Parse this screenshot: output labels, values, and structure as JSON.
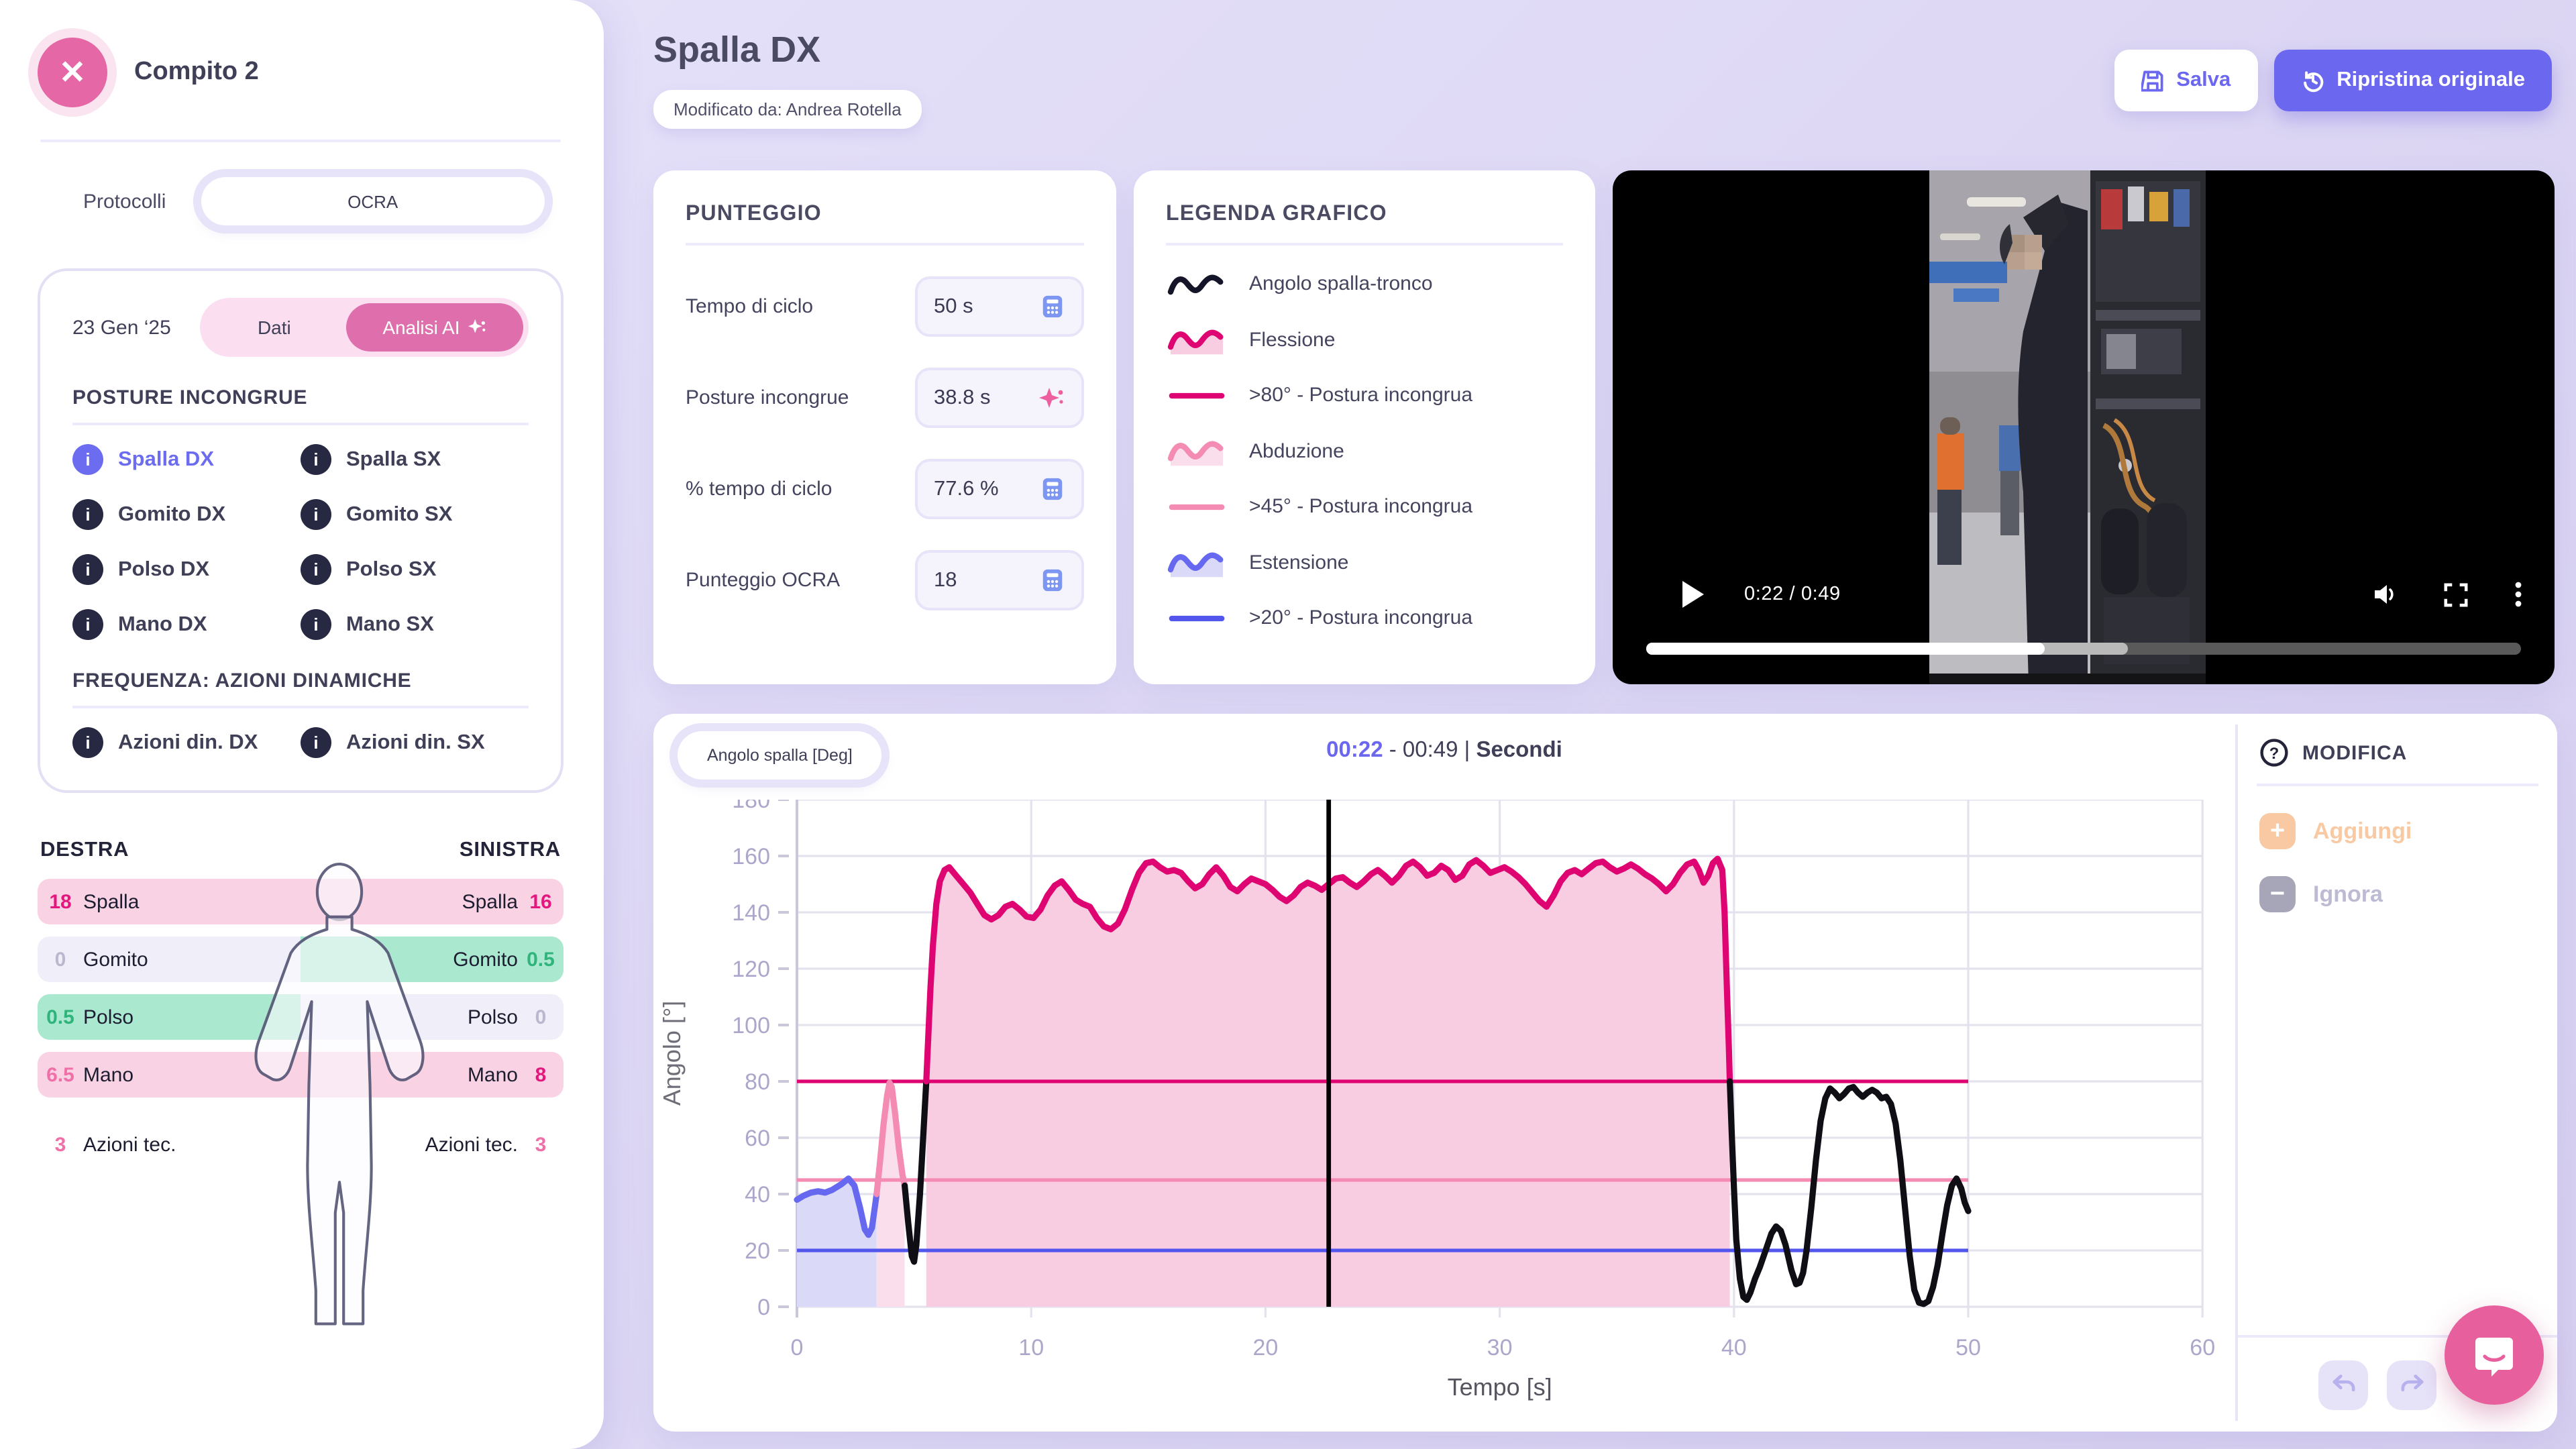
{
  "accents": {
    "purple": "#6c67ef",
    "purple_item": "#6c6cf0",
    "pink": "#e667a5",
    "pink_toggle": "#de6fac",
    "magenta": "#de0572",
    "soft_pink": "#f48bb2",
    "blue_line": "#5356ec",
    "peach": "#f8c9a2",
    "gray_ignore": "#a7a5b8"
  },
  "sidebar": {
    "task_title": "Compito 2",
    "protocols_label": "Protocolli",
    "protocol_value": "OCRA",
    "date": "23 Gen ‘25",
    "toggle": {
      "left": "Dati",
      "right": "Analisi AI"
    },
    "posture_section": "POSTURE INCONGRUE",
    "posture_items": [
      {
        "label": "Spalla DX",
        "active": true
      },
      {
        "label": "Spalla SX",
        "active": false
      },
      {
        "label": "Gomito DX",
        "active": false
      },
      {
        "label": "Gomito SX",
        "active": false
      },
      {
        "label": "Polso DX",
        "active": false
      },
      {
        "label": "Polso SX",
        "active": false
      },
      {
        "label": "Mano DX",
        "active": false
      },
      {
        "label": "Mano SX",
        "active": false
      }
    ],
    "frequency_section": "FREQUENZA: AZIONI DINAMICHE",
    "frequency_items": [
      {
        "label": "Azioni din. DX"
      },
      {
        "label": "Azioni din. SX"
      }
    ],
    "body_map": {
      "left_header": "DESTRA",
      "right_header": "SINISTRA",
      "rows": [
        {
          "label": "Spalla",
          "left_value": "18",
          "right_value": "16",
          "left_bg": "#f9d3e3",
          "right_bg": "#f9d3e3",
          "left_color": "#e5177f",
          "right_color": "#e5177f"
        },
        {
          "label": "Gomito",
          "left_value": "0",
          "right_value": "0.5",
          "left_bg": "#f0eef9",
          "right_bg": "#abe8d0",
          "left_color": "#bbb7ce",
          "right_color": "#2fb47c"
        },
        {
          "label": "Polso",
          "left_value": "0.5",
          "right_value": "0",
          "left_bg": "#abe8d0",
          "right_bg": "#f0eef9",
          "left_color": "#2fb47c",
          "right_color": "#bbb7ce"
        },
        {
          "label": "Mano",
          "left_value": "6.5",
          "right_value": "8",
          "left_bg": "#f9d3e3",
          "right_bg": "#f9d3e3",
          "left_color": "#f16fa8",
          "right_color": "#e5177f"
        }
      ],
      "actions_row": {
        "label": "Azioni tec.",
        "left_value": "3",
        "right_value": "3",
        "color": "#f16fa8"
      }
    }
  },
  "header": {
    "title": "Spalla DX",
    "badge": "Modificato da: Andrea Rotella",
    "save_label": "Salva",
    "restore_label": "Ripristina originale"
  },
  "score_card": {
    "title": "PUNTEGGIO",
    "rows": [
      {
        "label": "Tempo di ciclo",
        "value": "50 s",
        "icon": "calculator"
      },
      {
        "label": "Posture incongrue",
        "value": "38.8 s",
        "icon": "sparkle"
      },
      {
        "label": "% tempo di ciclo",
        "value": "77.6 %",
        "icon": "calculator"
      },
      {
        "label": "Punteggio OCRA",
        "value": "18",
        "icon": "calculator"
      }
    ]
  },
  "legend_card": {
    "title": "LEGENDA GRAFICO",
    "items": [
      {
        "label": "Angolo spalla-tronco",
        "kind": "wave",
        "color": "#15152a",
        "fill": ""
      },
      {
        "label": "Flessione",
        "kind": "wave",
        "color": "#de0572",
        "fill": "#f8cce1"
      },
      {
        "label": ">80° - Postura incongrua",
        "kind": "line",
        "color": "#de0572",
        "fill": ""
      },
      {
        "label": "Abduzione",
        "kind": "wave",
        "color": "#f48bb2",
        "fill": "#fbdeec"
      },
      {
        "label": ">45° - Postura incongrua",
        "kind": "line",
        "color": "#f48bb2",
        "fill": ""
      },
      {
        "label": "Estensione",
        "kind": "wave",
        "color": "#6669f0",
        "fill": "#dadaf8"
      },
      {
        "label": ">20° - Postura incongrua",
        "kind": "line",
        "color": "#5356ec",
        "fill": ""
      }
    ]
  },
  "video": {
    "current_time": "0:22",
    "duration": "0:49",
    "progress_pct": 45.5,
    "buffer_pct": 55
  },
  "chart_header": {
    "unit_pill": "Angolo spalla [Deg]",
    "time_current": "00:22",
    "time_sep": " - ",
    "time_total": "00:49",
    "time_bar": " | ",
    "time_unit": "Secondi"
  },
  "edit_panel": {
    "title": "MODIFICA",
    "add_label": "Aggiungi",
    "ignore_label": "Ignora"
  },
  "chart_data": {
    "type": "line",
    "title": "Angolo spalla [Deg]",
    "xlabel": "Tempo [s]",
    "ylabel": "Angolo [°]",
    "xlim": [
      0,
      60
    ],
    "ylim": [
      0,
      180
    ],
    "xticks": [
      0,
      10,
      20,
      30,
      40,
      50,
      60
    ],
    "yticks": [
      0,
      20,
      40,
      60,
      80,
      100,
      120,
      140,
      160,
      180
    ],
    "grid": true,
    "cursor_x": 22.7,
    "threshold_end_x": 50,
    "thresholds": [
      {
        "value": 80,
        "color": "#de0572",
        "label": ">80° - Postura incongrua"
      },
      {
        "value": 45,
        "color": "#f48bb2",
        "label": ">45° - Postura incongrua"
      },
      {
        "value": 20,
        "color": "#5356ec",
        "label": ">20° - Postura incongrua"
      }
    ],
    "series": [
      {
        "name": "Estensione",
        "color": "#6669f0",
        "fill": "#dadaf8",
        "points": [
          [
            0,
            38
          ],
          [
            0.3,
            39.5
          ],
          [
            0.6,
            40.5
          ],
          [
            0.9,
            41
          ],
          [
            1.2,
            40.5
          ],
          [
            1.5,
            41.5
          ],
          [
            1.9,
            43.5
          ],
          [
            2.2,
            45.5
          ],
          [
            2.45,
            43
          ],
          [
            2.7,
            35
          ],
          [
            2.9,
            27.5
          ],
          [
            3.05,
            25.5
          ],
          [
            3.2,
            28
          ],
          [
            3.4,
            40
          ]
        ]
      },
      {
        "name": "Abduzione",
        "color": "#f48bb2",
        "fill": "#fbdeec",
        "points": [
          [
            3.4,
            40
          ],
          [
            3.55,
            52
          ],
          [
            3.7,
            65
          ],
          [
            3.85,
            75
          ],
          [
            3.95,
            79.5
          ],
          [
            4.05,
            78
          ],
          [
            4.2,
            68
          ],
          [
            4.35,
            56
          ],
          [
            4.5,
            47
          ],
          [
            4.6,
            43
          ]
        ]
      },
      {
        "name": "Angolo spalla-tronco",
        "color": "#0e0e14",
        "fill": "",
        "points": [
          [
            4.6,
            43
          ],
          [
            4.75,
            30
          ],
          [
            4.9,
            18
          ],
          [
            5.0,
            16
          ],
          [
            5.1,
            22
          ],
          [
            5.25,
            40
          ],
          [
            5.4,
            62
          ],
          [
            5.52,
            80
          ]
        ]
      },
      {
        "name": "Flessione",
        "color": "#de0572",
        "fill": "#f8cce1",
        "points": [
          [
            5.52,
            80
          ],
          [
            5.6,
            95
          ],
          [
            5.7,
            113
          ],
          [
            5.8,
            128
          ],
          [
            5.95,
            143
          ],
          [
            6.1,
            151
          ],
          [
            6.3,
            155
          ],
          [
            6.5,
            156
          ],
          [
            6.8,
            153
          ],
          [
            7.1,
            150
          ],
          [
            7.4,
            147
          ],
          [
            7.7,
            143
          ],
          [
            8.0,
            139
          ],
          [
            8.3,
            137.5
          ],
          [
            8.6,
            139
          ],
          [
            8.9,
            142
          ],
          [
            9.2,
            143
          ],
          [
            9.5,
            141
          ],
          [
            9.8,
            138.5
          ],
          [
            10.1,
            138
          ],
          [
            10.4,
            141
          ],
          [
            10.7,
            146
          ],
          [
            11.0,
            149.5
          ],
          [
            11.3,
            151
          ],
          [
            11.6,
            148
          ],
          [
            11.9,
            144.5
          ],
          [
            12.2,
            143
          ],
          [
            12.5,
            142
          ],
          [
            12.8,
            138
          ],
          [
            13.1,
            135
          ],
          [
            13.4,
            134
          ],
          [
            13.7,
            136
          ],
          [
            14.0,
            141
          ],
          [
            14.3,
            148
          ],
          [
            14.6,
            154
          ],
          [
            14.9,
            157.5
          ],
          [
            15.2,
            158
          ],
          [
            15.5,
            156
          ],
          [
            15.8,
            154.5
          ],
          [
            16.1,
            155
          ],
          [
            16.4,
            154
          ],
          [
            16.7,
            151
          ],
          [
            17.0,
            148.5
          ],
          [
            17.3,
            150
          ],
          [
            17.6,
            153.5
          ],
          [
            17.9,
            156
          ],
          [
            18.2,
            153
          ],
          [
            18.5,
            149
          ],
          [
            18.8,
            147.5
          ],
          [
            19.1,
            150
          ],
          [
            19.4,
            152
          ],
          [
            19.7,
            151
          ],
          [
            20.0,
            150
          ],
          [
            20.3,
            148
          ],
          [
            20.6,
            145.5
          ],
          [
            20.9,
            144
          ],
          [
            21.2,
            146
          ],
          [
            21.5,
            149
          ],
          [
            21.8,
            150.5
          ],
          [
            22.1,
            149.5
          ],
          [
            22.4,
            148
          ],
          [
            22.7,
            150
          ],
          [
            23.0,
            152
          ],
          [
            23.3,
            152.5
          ],
          [
            23.6,
            150.5
          ],
          [
            23.9,
            149
          ],
          [
            24.2,
            151
          ],
          [
            24.5,
            153.5
          ],
          [
            24.8,
            155
          ],
          [
            25.1,
            153
          ],
          [
            25.4,
            150.5
          ],
          [
            25.7,
            153
          ],
          [
            26.0,
            156.5
          ],
          [
            26.3,
            158
          ],
          [
            26.6,
            156
          ],
          [
            26.9,
            153
          ],
          [
            27.2,
            154
          ],
          [
            27.5,
            156.5
          ],
          [
            27.8,
            155
          ],
          [
            28.1,
            151.5
          ],
          [
            28.4,
            153
          ],
          [
            28.7,
            157
          ],
          [
            29.0,
            158.5
          ],
          [
            29.3,
            156.5
          ],
          [
            29.6,
            154
          ],
          [
            29.9,
            155
          ],
          [
            30.2,
            156
          ],
          [
            30.5,
            154.5
          ],
          [
            30.8,
            152.5
          ],
          [
            31.1,
            150
          ],
          [
            31.4,
            147
          ],
          [
            31.7,
            144
          ],
          [
            32.0,
            142
          ],
          [
            32.3,
            146
          ],
          [
            32.6,
            151
          ],
          [
            32.9,
            154
          ],
          [
            33.2,
            155
          ],
          [
            33.5,
            153.5
          ],
          [
            33.8,
            155.5
          ],
          [
            34.1,
            157.5
          ],
          [
            34.4,
            158
          ],
          [
            34.7,
            156
          ],
          [
            35.0,
            154.5
          ],
          [
            35.3,
            155.5
          ],
          [
            35.6,
            157
          ],
          [
            35.9,
            155.5
          ],
          [
            36.2,
            153.5
          ],
          [
            36.5,
            152
          ],
          [
            36.8,
            150
          ],
          [
            37.1,
            147.5
          ],
          [
            37.4,
            150
          ],
          [
            37.7,
            154
          ],
          [
            38.0,
            157
          ],
          [
            38.3,
            158
          ],
          [
            38.5,
            155
          ],
          [
            38.7,
            150.5
          ],
          [
            38.9,
            153
          ],
          [
            39.1,
            157.5
          ],
          [
            39.3,
            159
          ],
          [
            39.5,
            155
          ],
          [
            39.6,
            140
          ],
          [
            39.7,
            112
          ],
          [
            39.78,
            92
          ],
          [
            39.82,
            80
          ]
        ]
      },
      {
        "name": "Angolo spalla-tronco",
        "color": "#0e0e14",
        "fill": "",
        "points": [
          [
            39.82,
            80
          ],
          [
            39.9,
            62
          ],
          [
            40.0,
            42
          ],
          [
            40.1,
            24
          ],
          [
            40.25,
            10
          ],
          [
            40.4,
            3.5
          ],
          [
            40.55,
            2.5
          ],
          [
            40.7,
            5
          ],
          [
            40.9,
            10
          ],
          [
            41.1,
            14
          ],
          [
            41.35,
            20
          ],
          [
            41.6,
            26
          ],
          [
            41.8,
            28.5
          ],
          [
            42.0,
            27
          ],
          [
            42.2,
            22
          ],
          [
            42.45,
            13
          ],
          [
            42.65,
            8
          ],
          [
            42.8,
            8.5
          ],
          [
            42.95,
            12
          ],
          [
            43.1,
            20
          ],
          [
            43.3,
            35
          ],
          [
            43.5,
            52
          ],
          [
            43.7,
            66
          ],
          [
            43.9,
            74
          ],
          [
            44.1,
            77.5
          ],
          [
            44.3,
            76
          ],
          [
            44.5,
            74
          ],
          [
            44.7,
            75.5
          ],
          [
            44.9,
            77.5
          ],
          [
            45.1,
            78
          ],
          [
            45.3,
            76
          ],
          [
            45.5,
            74.5
          ],
          [
            45.7,
            76
          ],
          [
            45.9,
            77
          ],
          [
            46.1,
            76
          ],
          [
            46.3,
            74
          ],
          [
            46.5,
            74.5
          ],
          [
            46.7,
            72
          ],
          [
            46.9,
            65
          ],
          [
            47.1,
            52
          ],
          [
            47.3,
            35
          ],
          [
            47.5,
            18
          ],
          [
            47.7,
            6
          ],
          [
            47.9,
            1.5
          ],
          [
            48.1,
            1
          ],
          [
            48.3,
            2
          ],
          [
            48.5,
            7
          ],
          [
            48.7,
            15
          ],
          [
            48.9,
            26
          ],
          [
            49.1,
            36
          ],
          [
            49.3,
            43
          ],
          [
            49.5,
            45.5
          ],
          [
            49.7,
            42
          ],
          [
            49.85,
            37
          ],
          [
            50,
            34
          ]
        ]
      }
    ]
  }
}
